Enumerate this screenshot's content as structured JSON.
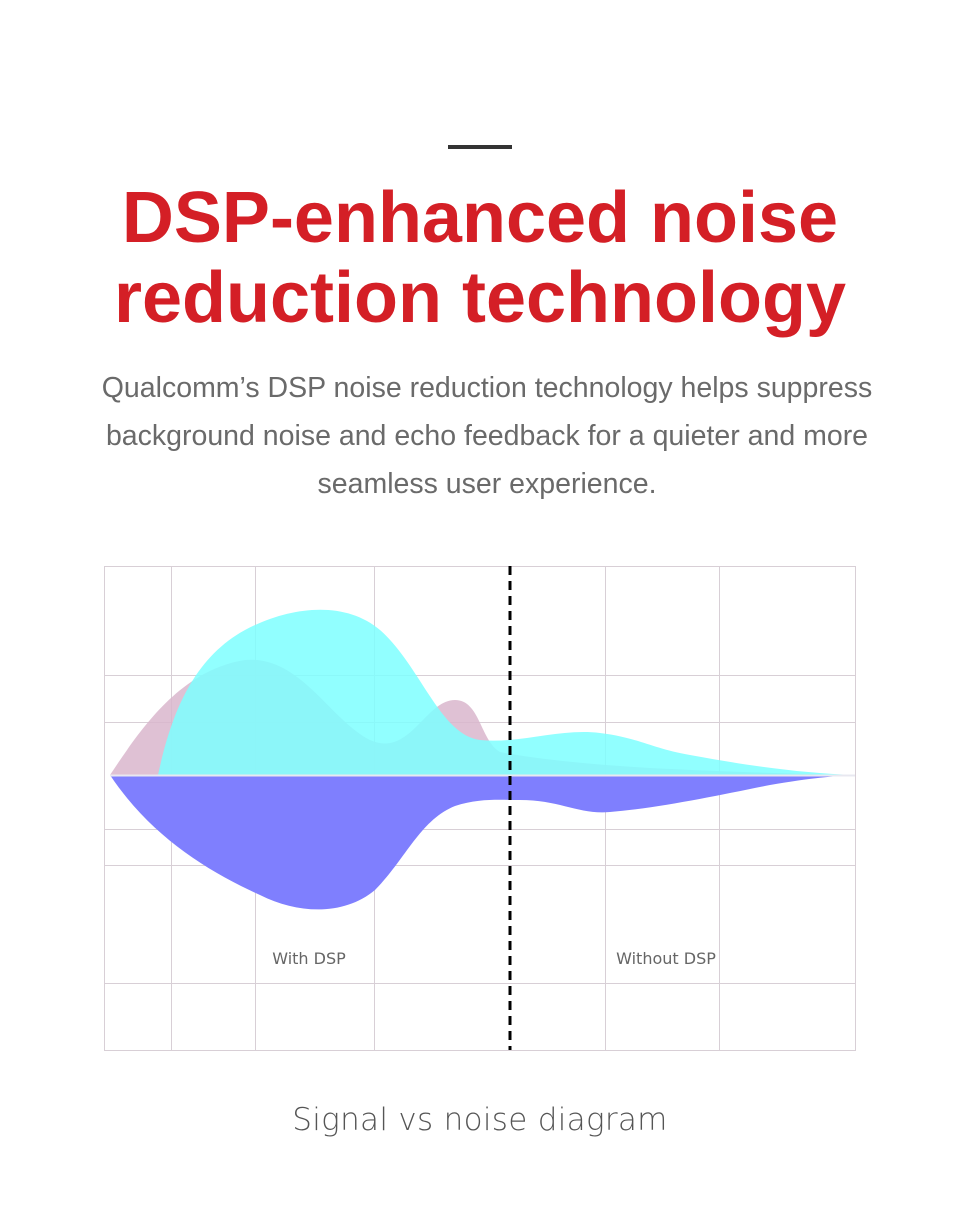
{
  "header": {
    "title": "DSP-enhanced noise reduction technology",
    "subtitle": "Qualcomm’s DSP noise reduction technology helps suppress background noise and echo feedback for a quieter and more seamless user experience."
  },
  "diagram": {
    "label_with": "With DSP",
    "label_without": "Without DSP",
    "caption": "Signal vs noise diagram",
    "colors": {
      "headline": "#d41f26",
      "signal": "#7effff",
      "noise": "#d9b6cd",
      "negative": "#7f7ffe",
      "grid": "#d8cfd6",
      "divider": "#000000"
    }
  }
}
